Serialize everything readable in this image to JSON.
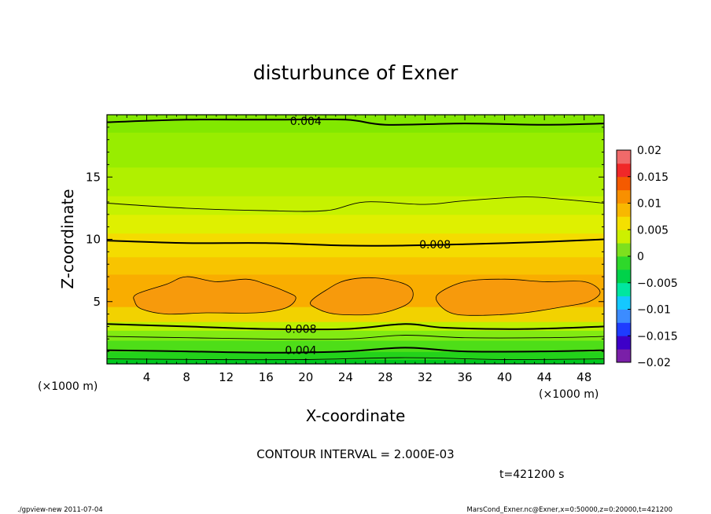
{
  "chart_data": {
    "type": "heatmap",
    "title": "disturbunce of Exner",
    "xlabel": "X-coordinate",
    "ylabel": "Z-coordinate",
    "x_unit": "(×1000 m)",
    "y_unit": "(×1000 m)",
    "xlim": [
      0,
      50
    ],
    "ylim": [
      0,
      20
    ],
    "x_ticks": [
      4,
      8,
      12,
      16,
      20,
      24,
      28,
      32,
      36,
      40,
      44,
      48
    ],
    "y_ticks": [
      5,
      10,
      15
    ],
    "colorbar": {
      "min": -0.02,
      "max": 0.02,
      "tick_labels": [
        "0.02",
        "0.015",
        "0.01",
        "0.005",
        "0",
        "−0.005",
        "−0.01",
        "−0.015",
        "−0.02"
      ],
      "tick_values": [
        0.02,
        0.015,
        0.01,
        0.005,
        0,
        -0.005,
        -0.01,
        -0.015,
        -0.02
      ]
    },
    "contour_interval": "CONTOUR INTERVAL = 2.000E-03",
    "contour_labels": [
      {
        "text": "0.004",
        "x": 20,
        "z": 19.5
      },
      {
        "text": "0.008",
        "x": 33,
        "z": 9.6
      },
      {
        "text": "0.008",
        "x": 19.5,
        "z": 2.8
      },
      {
        "text": "0.004",
        "x": 19.5,
        "z": 1.1
      }
    ],
    "contour_lines": [
      {
        "level": 0.004,
        "points": [
          [
            0,
            19.4
          ],
          [
            8,
            19.6
          ],
          [
            16,
            19.6
          ],
          [
            24,
            19.6
          ],
          [
            28,
            19.2
          ],
          [
            36,
            19.3
          ],
          [
            44,
            19.2
          ],
          [
            50,
            19.3
          ]
        ]
      },
      {
        "level": 0.006,
        "points": [
          [
            0,
            12.9
          ],
          [
            8,
            12.5
          ],
          [
            16,
            12.3
          ],
          [
            22,
            12.3
          ],
          [
            26,
            13.0
          ],
          [
            32,
            12.8
          ],
          [
            36,
            13.1
          ],
          [
            42,
            13.4
          ],
          [
            46,
            13.2
          ],
          [
            50,
            12.9
          ]
        ]
      },
      {
        "level": 0.008,
        "points": [
          [
            0,
            9.9
          ],
          [
            8,
            9.7
          ],
          [
            16,
            9.7
          ],
          [
            24,
            9.5
          ],
          [
            30,
            9.5
          ],
          [
            36,
            9.6
          ],
          [
            44,
            9.8
          ],
          [
            50,
            10.0
          ]
        ]
      },
      {
        "level": 0.008,
        "points": [
          [
            0,
            3.2
          ],
          [
            8,
            3.0
          ],
          [
            16,
            2.8
          ],
          [
            24,
            2.8
          ],
          [
            30,
            3.2
          ],
          [
            34,
            2.9
          ],
          [
            42,
            2.8
          ],
          [
            50,
            3.0
          ]
        ]
      },
      {
        "level": 0.006,
        "points": [
          [
            0,
            2.2
          ],
          [
            8,
            2.1
          ],
          [
            16,
            2.0
          ],
          [
            24,
            2.0
          ],
          [
            30,
            2.3
          ],
          [
            36,
            2.1
          ],
          [
            44,
            2.1
          ],
          [
            50,
            2.2
          ]
        ]
      },
      {
        "level": 0.004,
        "points": [
          [
            0,
            1.1
          ],
          [
            8,
            1.0
          ],
          [
            16,
            0.9
          ],
          [
            24,
            1.0
          ],
          [
            30,
            1.3
          ],
          [
            36,
            1.0
          ],
          [
            44,
            1.0
          ],
          [
            50,
            1.1
          ]
        ]
      },
      {
        "level": 0.002,
        "points": [
          [
            0,
            0.4
          ],
          [
            10,
            0.35
          ],
          [
            20,
            0.35
          ],
          [
            30,
            0.5
          ],
          [
            40,
            0.35
          ],
          [
            50,
            0.4
          ]
        ]
      }
    ],
    "contour_loops_0_01": [
      [
        [
          3,
          5.6
        ],
        [
          6,
          6.4
        ],
        [
          8,
          7.0
        ],
        [
          11,
          6.6
        ],
        [
          14,
          6.8
        ],
        [
          16,
          6.4
        ],
        [
          18,
          5.8
        ],
        [
          19,
          5.3
        ],
        [
          18,
          4.5
        ],
        [
          15,
          4.1
        ],
        [
          10,
          4.1
        ],
        [
          6,
          4.0
        ],
        [
          3.5,
          4.4
        ],
        [
          2.8,
          5.0
        ]
      ],
      [
        [
          20.5,
          5.0
        ],
        [
          22,
          5.9
        ],
        [
          24,
          6.7
        ],
        [
          27,
          6.9
        ],
        [
          30,
          6.4
        ],
        [
          30.8,
          5.6
        ],
        [
          30,
          4.7
        ],
        [
          27,
          4.0
        ],
        [
          23,
          4.0
        ],
        [
          21,
          4.5
        ]
      ],
      [
        [
          33.3,
          5.6
        ],
        [
          36,
          6.6
        ],
        [
          40,
          6.8
        ],
        [
          44,
          6.6
        ],
        [
          48,
          6.6
        ],
        [
          49.6,
          5.8
        ],
        [
          48.5,
          5.0
        ],
        [
          46,
          4.6
        ],
        [
          42,
          4.1
        ],
        [
          38,
          3.9
        ],
        [
          35,
          4.0
        ],
        [
          33.5,
          4.7
        ]
      ]
    ],
    "field_bands": [
      {
        "z": [
          0,
          0.35
        ],
        "color": "#00c81e"
      },
      {
        "z": [
          0.35,
          1.0
        ],
        "color": "#23d21a"
      },
      {
        "z": [
          1.0,
          1.9
        ],
        "color": "#4ede18"
      },
      {
        "z": [
          1.9,
          2.7
        ],
        "color": "#82ea12"
      },
      {
        "z": [
          2.7,
          3.4
        ],
        "color": "#bdf000"
      },
      {
        "z": [
          3.4,
          4.6
        ],
        "color": "#f2d200"
      },
      {
        "z": [
          4.6,
          7.2
        ],
        "color": "#f9ad00"
      },
      {
        "z": [
          7.2,
          8.6
        ],
        "color": "#f8c400"
      },
      {
        "z": [
          8.6,
          10.5
        ],
        "color": "#f4dc00"
      },
      {
        "z": [
          10.5,
          12.0
        ],
        "color": "#dff000"
      },
      {
        "z": [
          12.0,
          13.5
        ],
        "color": "#c6f200"
      },
      {
        "z": [
          13.5,
          15.8
        ],
        "color": "#b0f000"
      },
      {
        "z": [
          15.8,
          18.6
        ],
        "color": "#98ed00"
      },
      {
        "z": [
          18.6,
          20
        ],
        "color": "#82e800"
      }
    ],
    "grid": false
  },
  "time_label": "t=421200 s",
  "footer_left": "./gpview-new   2011-07-04",
  "footer_right": "MarsCond_Exner.nc@Exner,x=0:50000,z=0:20000,t=421200"
}
